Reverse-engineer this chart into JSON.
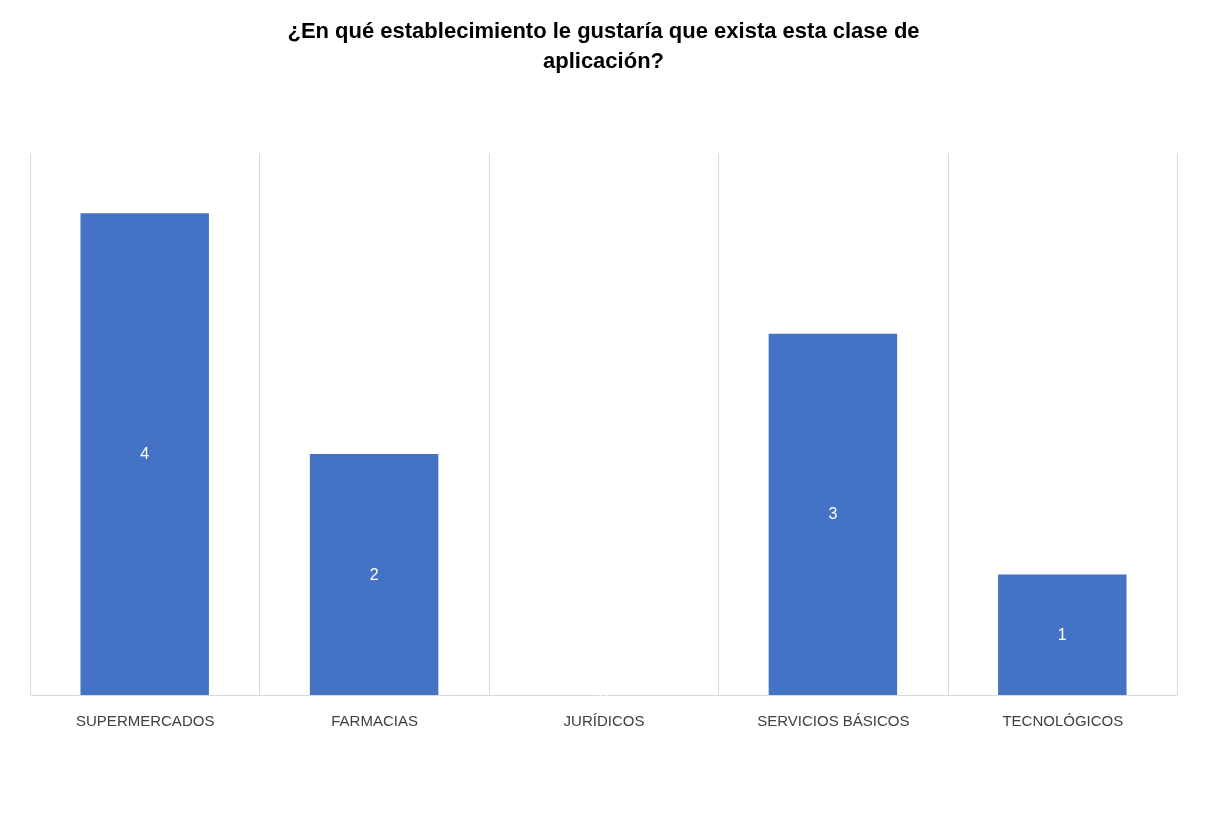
{
  "chart_data": {
    "type": "bar",
    "title": "¿En qué establecimiento le gustaría que exista esta clase de aplicación?",
    "categories": [
      "SUPERMERCADOS",
      "FARMACIAS",
      "JURÍDICOS",
      "SERVICIOS BÁSICOS",
      "TECNOLÓGICOS"
    ],
    "values": [
      4,
      2,
      0,
      3,
      1
    ],
    "color": "#4472c4",
    "ylim": [
      0,
      4.5
    ],
    "data_labels": true,
    "grid": "x"
  }
}
